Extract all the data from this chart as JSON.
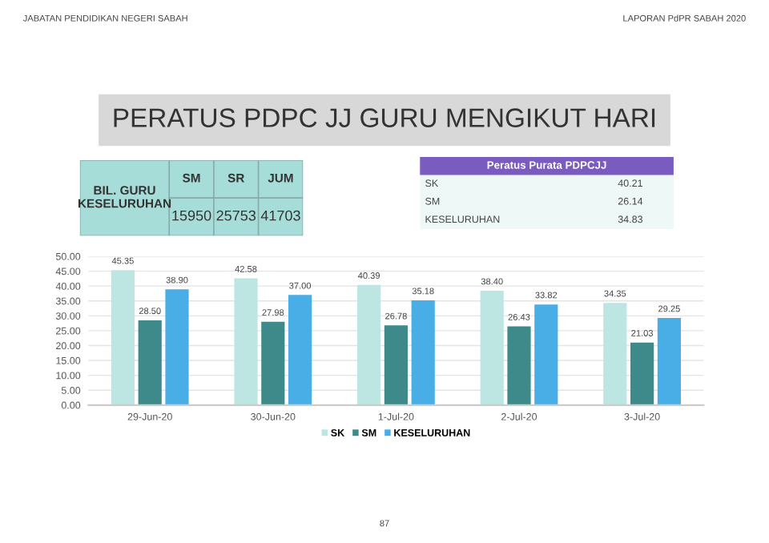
{
  "chart_data": [
    {
      "type": "other",
      "title": "PERATUS PDPC JJ GURU MENGIKUT HARI",
      "annotations": [
        "JABATAN PENDIDIKAN NEGERI SABAH",
        "LAPORAN PdPR SABAH 2020",
        "87"
      ]
    },
    {
      "type": "other",
      "title": "BIL. GURU KESELURUHAN",
      "annotations": [
        "SM",
        "SR",
        "JUM",
        "15950",
        "25753",
        "41703"
      ],
      "color": "#a6ddd8"
    },
    {
      "type": "other",
      "title": "Peratus Purata PDPCJJ",
      "annotations": [
        "SK",
        "40.21",
        "SM",
        "26.14",
        "KESELURUHAN",
        "34.83"
      ],
      "color": "#7a5cc0"
    },
    {
      "type": "bar",
      "categories": [
        "29-Jun-20",
        "30-Jun-20",
        "1-Jul-20",
        "2-Jul-20",
        "3-Jul-20"
      ],
      "series": [
        {
          "name": "SK",
          "color": "#bde6e3",
          "values": [
            45.35,
            42.58,
            40.39,
            38.4,
            34.35
          ],
          "value_labels": [
            "45.35",
            "42.58",
            "40.39",
            "38.40",
            "34.35"
          ]
        },
        {
          "name": "SM",
          "color": "#3e8a8a",
          "values": [
            28.5,
            27.98,
            26.78,
            26.43,
            21.03
          ],
          "value_labels": [
            "28.50",
            "27.98",
            "26.78",
            "26.43",
            "21.03"
          ]
        },
        {
          "name": "KESELURUHAN",
          "color": "#4aaee6",
          "values": [
            38.9,
            37.0,
            35.18,
            33.82,
            29.25
          ],
          "value_labels": [
            "38.90",
            "37.00",
            "35.18",
            "33.82",
            "29.25"
          ]
        }
      ],
      "ylim": [
        0,
        50
      ],
      "yticks": [
        {
          "value": 0,
          "label": "0.00"
        },
        {
          "value": 5,
          "label": "5.00"
        },
        {
          "value": 10,
          "label": "10.00"
        },
        {
          "value": 15,
          "label": "15.00"
        },
        {
          "value": 20,
          "label": "20.00"
        },
        {
          "value": 25,
          "label": "25.00"
        },
        {
          "value": 30,
          "label": "30.00"
        },
        {
          "value": 35,
          "label": "35.00"
        },
        {
          "value": 40,
          "label": "40.00"
        },
        {
          "value": 45,
          "label": "45.00"
        },
        {
          "value": 50,
          "label": "50.00"
        }
      ],
      "grid": "y",
      "legend": "bottom"
    }
  ]
}
